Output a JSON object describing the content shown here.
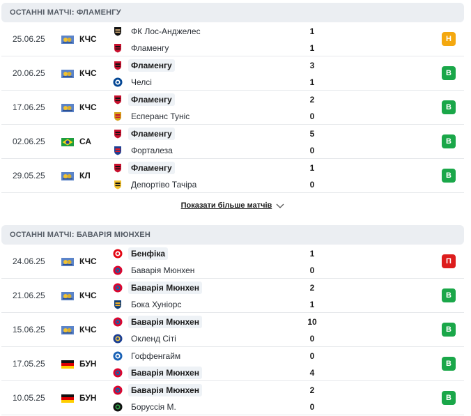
{
  "colors": {
    "win": "#1aa749",
    "draw": "#f4a80f",
    "loss": "#dd1d1d"
  },
  "sections": [
    {
      "title": "ОСТАННІ МАТЧІ: ФЛАМЕНГУ",
      "matches": [
        {
          "date": "25.06.25",
          "comp": "КЧС",
          "flag": "cwc-icon",
          "home": {
            "name": "ФК Лос-Анджелес",
            "logo": "lafc-logo-icon",
            "bold": false
          },
          "away": {
            "name": "Фламенгу",
            "logo": "flamengo-logo-icon",
            "bold": false
          },
          "score_home": "1",
          "score_away": "1",
          "result": "Н",
          "result_type": "draw"
        },
        {
          "date": "20.06.25",
          "comp": "КЧС",
          "flag": "cwc-icon",
          "home": {
            "name": "Фламенгу",
            "logo": "flamengo-logo-icon",
            "bold": true
          },
          "away": {
            "name": "Челсі",
            "logo": "chelsea-logo-icon",
            "bold": false
          },
          "score_home": "3",
          "score_away": "1",
          "result": "В",
          "result_type": "win"
        },
        {
          "date": "17.06.25",
          "comp": "КЧС",
          "flag": "cwc-icon",
          "home": {
            "name": "Фламенгу",
            "logo": "flamengo-logo-icon",
            "bold": true
          },
          "away": {
            "name": "Есперанс Туніс",
            "logo": "esperance-logo-icon",
            "bold": false
          },
          "score_home": "2",
          "score_away": "0",
          "result": "В",
          "result_type": "win"
        },
        {
          "date": "02.06.25",
          "comp": "СА",
          "flag": "brazil-flag-icon",
          "home": {
            "name": "Фламенгу",
            "logo": "flamengo-logo-icon",
            "bold": true
          },
          "away": {
            "name": "Форталеза",
            "logo": "fortaleza-logo-icon",
            "bold": false
          },
          "score_home": "5",
          "score_away": "0",
          "result": "В",
          "result_type": "win"
        },
        {
          "date": "29.05.25",
          "comp": "КЛ",
          "flag": "cwc-icon",
          "home": {
            "name": "Фламенгу",
            "logo": "flamengo-logo-icon",
            "bold": true
          },
          "away": {
            "name": "Депортіво Тачіра",
            "logo": "tachira-logo-icon",
            "bold": false
          },
          "score_home": "1",
          "score_away": "0",
          "result": "В",
          "result_type": "win"
        }
      ],
      "show_more": "Показати більше матчів"
    },
    {
      "title": "ОСТАННІ МАТЧІ: БАВАРІЯ МЮНХЕН",
      "matches": [
        {
          "date": "24.06.25",
          "comp": "КЧС",
          "flag": "cwc-icon",
          "home": {
            "name": "Бенфіка",
            "logo": "benfica-logo-icon",
            "bold": true
          },
          "away": {
            "name": "Баварія Мюнхен",
            "logo": "bayern-logo-icon",
            "bold": false
          },
          "score_home": "1",
          "score_away": "0",
          "result": "П",
          "result_type": "loss"
        },
        {
          "date": "21.06.25",
          "comp": "КЧС",
          "flag": "cwc-icon",
          "home": {
            "name": "Баварія Мюнхен",
            "logo": "bayern-logo-icon",
            "bold": true
          },
          "away": {
            "name": "Бока Хуніорс",
            "logo": "boca-logo-icon",
            "bold": false
          },
          "score_home": "2",
          "score_away": "1",
          "result": "В",
          "result_type": "win"
        },
        {
          "date": "15.06.25",
          "comp": "КЧС",
          "flag": "cwc-icon",
          "home": {
            "name": "Баварія Мюнхен",
            "logo": "bayern-logo-icon",
            "bold": true
          },
          "away": {
            "name": "Окленд Сіті",
            "logo": "auckland-logo-icon",
            "bold": false
          },
          "score_home": "10",
          "score_away": "0",
          "result": "В",
          "result_type": "win"
        },
        {
          "date": "17.05.25",
          "comp": "БУН",
          "flag": "germany-flag-icon",
          "home": {
            "name": "Гоффенгайм",
            "logo": "hoffenheim-logo-icon",
            "bold": false
          },
          "away": {
            "name": "Баварія Мюнхен",
            "logo": "bayern-logo-icon",
            "bold": true
          },
          "score_home": "0",
          "score_away": "4",
          "result": "В",
          "result_type": "win"
        },
        {
          "date": "10.05.25",
          "comp": "БУН",
          "flag": "germany-flag-icon",
          "home": {
            "name": "Баварія Мюнхен",
            "logo": "bayern-logo-icon",
            "bold": true
          },
          "away": {
            "name": "Боруссія М.",
            "logo": "gladbach-logo-icon",
            "bold": false
          },
          "score_home": "2",
          "score_away": "0",
          "result": "В",
          "result_type": "win"
        }
      ]
    }
  ]
}
